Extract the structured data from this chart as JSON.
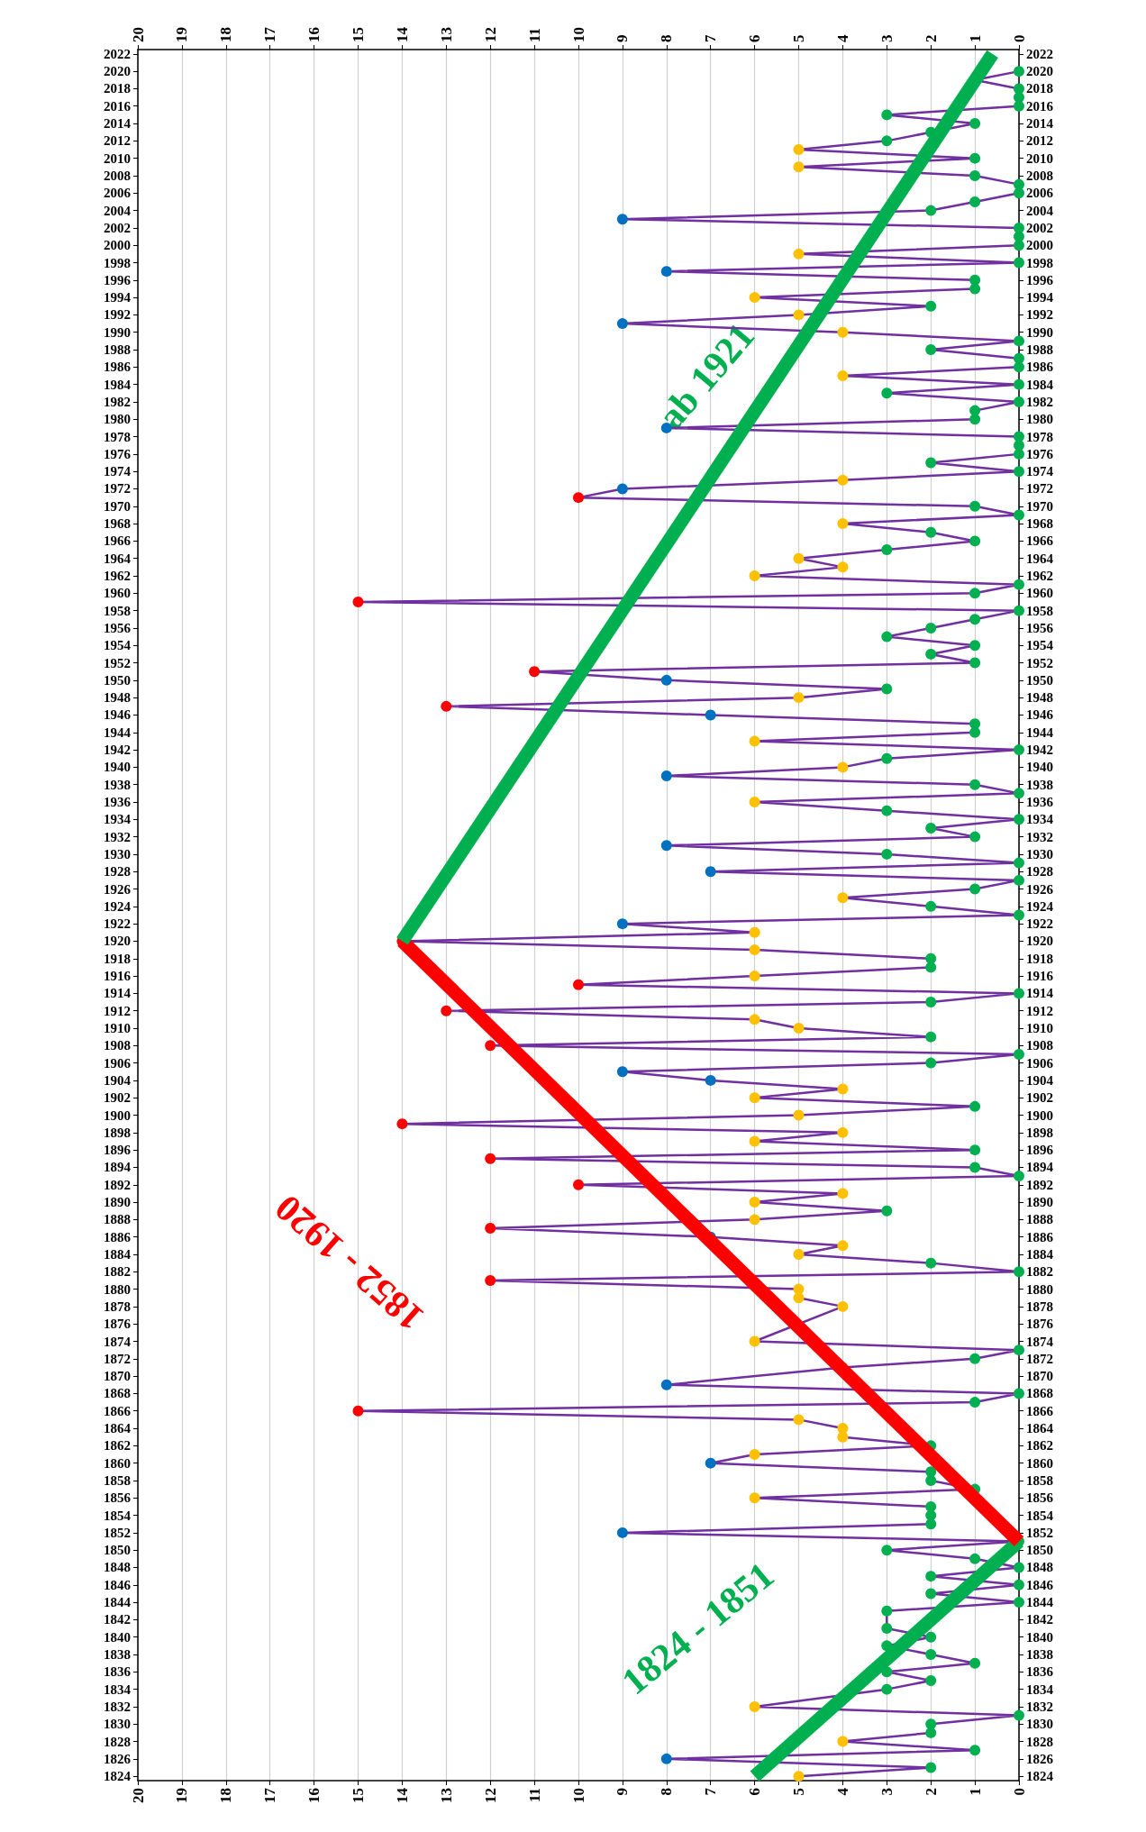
{
  "chart_data": {
    "type": "line",
    "orientation": "horizontal",
    "ylim": [
      1823.5,
      2022.5
    ],
    "yticks": [
      1824,
      1826,
      1828,
      1830,
      1832,
      1834,
      1836,
      1838,
      1840,
      1842,
      1844,
      1846,
      1848,
      1850,
      1852,
      1854,
      1856,
      1858,
      1860,
      1862,
      1864,
      1866,
      1868,
      1870,
      1872,
      1874,
      1876,
      1878,
      1880,
      1882,
      1884,
      1886,
      1888,
      1890,
      1892,
      1894,
      1896,
      1898,
      1900,
      1902,
      1904,
      1906,
      1908,
      1910,
      1912,
      1914,
      1916,
      1918,
      1920,
      1922,
      1924,
      1926,
      1928,
      1930,
      1932,
      1934,
      1936,
      1938,
      1940,
      1942,
      1944,
      1946,
      1948,
      1950,
      1952,
      1954,
      1956,
      1958,
      1960,
      1962,
      1964,
      1966,
      1968,
      1970,
      1972,
      1974,
      1976,
      1978,
      1980,
      1982,
      1984,
      1986,
      1988,
      1990,
      1992,
      1994,
      1996,
      1998,
      2000,
      2002,
      2004,
      2006,
      2008,
      2010,
      2012,
      2014,
      2016,
      2018,
      2020,
      2022
    ],
    "y2lim": [
      1823.5,
      2022.5
    ],
    "y2ticks": [
      1824,
      1826,
      1828,
      1830,
      1832,
      1834,
      1836,
      1838,
      1840,
      1842,
      1844,
      1846,
      1848,
      1850,
      1852,
      1854,
      1856,
      1858,
      1860,
      1862,
      1864,
      1866,
      1868,
      1870,
      1872,
      1874,
      1876,
      1878,
      1880,
      1882,
      1884,
      1886,
      1888,
      1890,
      1892,
      1894,
      1896,
      1898,
      1900,
      1902,
      1904,
      1906,
      1908,
      1910,
      1912,
      1914,
      1916,
      1918,
      1920,
      1922,
      1924,
      1926,
      1928,
      1930,
      1932,
      1934,
      1936,
      1938,
      1940,
      1942,
      1944,
      1946,
      1948,
      1950,
      1952,
      1954,
      1956,
      1958,
      1960,
      1962,
      1964,
      1966,
      1968,
      1970,
      1972,
      1974,
      1976,
      1978,
      1980,
      1982,
      1984,
      1986,
      1988,
      1990,
      1992,
      1994,
      1996,
      1998,
      2000,
      2002,
      2004,
      2006,
      2008,
      2010,
      2012,
      2014,
      2016,
      2018,
      2020,
      2022
    ],
    "xlim": [
      20,
      0
    ],
    "xticks": [
      0,
      1,
      2,
      3,
      4,
      5,
      6,
      7,
      8,
      9,
      10,
      11,
      12,
      13,
      14,
      15,
      16,
      17,
      18,
      19,
      20
    ],
    "x2lim": [
      20,
      0
    ],
    "x2ticks": [
      0,
      1,
      2,
      3,
      4,
      5,
      6,
      7,
      8,
      9,
      10,
      11,
      12,
      13,
      14,
      15,
      16,
      17,
      18,
      19,
      20
    ],
    "grid": "x",
    "marker": "circle",
    "series": [
      {
        "color": "#7030a0",
        "x": [
          1824,
          1825,
          1826,
          1827,
          1828,
          1829,
          1830,
          1831,
          1832,
          1833,
          1834,
          1835,
          1836,
          1837,
          1838,
          1839,
          1840,
          1841,
          1842,
          1843,
          1844,
          1845,
          1846,
          1847,
          1848,
          1849,
          1850,
          1851,
          1852,
          1853,
          1854,
          1855,
          1856,
          1857,
          1858,
          1859,
          1860,
          1861,
          1862,
          1863,
          1864,
          1865,
          1866,
          1867,
          1868,
          1869,
          1870,
          1871,
          1872,
          1873,
          1874,
          1875,
          1876,
          1877,
          1878,
          1879,
          1880,
          1881,
          1882,
          1883,
          1884,
          1885,
          1886,
          1887,
          1888,
          1889,
          1890,
          1891,
          1892,
          1893,
          1894,
          1895,
          1896,
          1897,
          1898,
          1899,
          1900,
          1901,
          1902,
          1903,
          1904,
          1905,
          1906,
          1907,
          1908,
          1909,
          1910,
          1911,
          1912,
          1913,
          1914,
          1915,
          1916,
          1917,
          1918,
          1919,
          1920,
          1921,
          1922,
          1923,
          1924,
          1925,
          1926,
          1927,
          1928,
          1929,
          1930,
          1931,
          1932,
          1933,
          1934,
          1935,
          1936,
          1937,
          1938,
          1939,
          1940,
          1941,
          1942,
          1943,
          1944,
          1945,
          1946,
          1947,
          1948,
          1949,
          1950,
          1951,
          1952,
          1953,
          1954,
          1955,
          1956,
          1957,
          1958,
          1959,
          1960,
          1961,
          1962,
          1963,
          1964,
          1965,
          1966,
          1967,
          1968,
          1969,
          1970,
          1971,
          1972,
          1973,
          1974,
          1975,
          1976,
          1977,
          1978,
          1979,
          1980,
          1981,
          1982,
          1983,
          1984,
          1985,
          1986,
          1987,
          1988,
          1989,
          1990,
          1991,
          1992,
          1993,
          1994,
          1995,
          1996,
          1997,
          1998,
          1999,
          2000,
          2001,
          2002,
          2003,
          2004,
          2005,
          2006,
          2007,
          2008,
          2009,
          2010,
          2011,
          2012,
          2013,
          2014,
          2015,
          2016,
          2017,
          2018,
          2019,
          2020
        ],
        "values": [
          5,
          2,
          8,
          1,
          4,
          2,
          2,
          0,
          6,
          null,
          3,
          2,
          3,
          1,
          2,
          3,
          2,
          3,
          null,
          3,
          0,
          2,
          0,
          2,
          0,
          1,
          3,
          0,
          9,
          2,
          2,
          2,
          6,
          1,
          2,
          2,
          7,
          6,
          2,
          4,
          4,
          5,
          15,
          1,
          0,
          8,
          null,
          4,
          1,
          0,
          6,
          null,
          null,
          null,
          4,
          5,
          5,
          12,
          0,
          2,
          5,
          4,
          7,
          12,
          6,
          3,
          6,
          4,
          10,
          0,
          1,
          12,
          1,
          6,
          4,
          14,
          5,
          1,
          6,
          4,
          7,
          9,
          2,
          0,
          12,
          2,
          5,
          6,
          13,
          2,
          0,
          10,
          6,
          2,
          2,
          6,
          14,
          6,
          9,
          0,
          2,
          4,
          1,
          0,
          7,
          0,
          3,
          8,
          1,
          2,
          0,
          3,
          6,
          0,
          1,
          8,
          4,
          3,
          0,
          6,
          1,
          1,
          7,
          13,
          5,
          3,
          8,
          11,
          1,
          2,
          1,
          3,
          2,
          1,
          0,
          15,
          1,
          0,
          6,
          4,
          5,
          3,
          1,
          2,
          4,
          0,
          1,
          10,
          9,
          4,
          0,
          2,
          0,
          0,
          0,
          8,
          1,
          1,
          0,
          3,
          0,
          4,
          0,
          0,
          2,
          0,
          4,
          9,
          5,
          2,
          6,
          1,
          1,
          8,
          0,
          5,
          0,
          0,
          0,
          9,
          2,
          1,
          0,
          0,
          1,
          5,
          1,
          5,
          3,
          2,
          1,
          3,
          0,
          0,
          0,
          1,
          0
        ],
        "colors": [
          "#ffc000",
          "#00b050",
          "#0070c0",
          "#00b050",
          "#ffc000",
          "#00b050",
          "#00b050",
          "#00b050",
          "#ffc000",
          null,
          "#00b050",
          "#00b050",
          "#00b050",
          "#00b050",
          "#00b050",
          "#00b050",
          "#00b050",
          "#00b050",
          null,
          "#00b050",
          "#00b050",
          "#00b050",
          "#00b050",
          "#00b050",
          "#00b050",
          "#00b050",
          "#00b050",
          "#00b050",
          "#0070c0",
          "#00b050",
          "#00b050",
          "#00b050",
          "#ffc000",
          "#00b050",
          "#00b050",
          "#00b050",
          "#0070c0",
          "#ffc000",
          "#00b050",
          "#ffc000",
          "#ffc000",
          "#ffc000",
          "#ff0000",
          "#00b050",
          "#00b050",
          "#0070c0",
          null,
          "#ffc000",
          "#00b050",
          "#00b050",
          "#ffc000",
          null,
          null,
          null,
          "#ffc000",
          "#ffc000",
          "#ffc000",
          "#ff0000",
          "#00b050",
          "#00b050",
          "#ffc000",
          "#ffc000",
          "#0070c0",
          "#ff0000",
          "#ffc000",
          "#00b050",
          "#ffc000",
          "#ffc000",
          "#ff0000",
          "#00b050",
          "#00b050",
          "#ff0000",
          "#00b050",
          "#ffc000",
          "#ffc000",
          "#ff0000",
          "#ffc000",
          "#00b050",
          "#ffc000",
          "#ffc000",
          "#0070c0",
          "#0070c0",
          "#00b050",
          "#00b050",
          "#ff0000",
          "#00b050",
          "#ffc000",
          "#ffc000",
          "#ff0000",
          "#00b050",
          "#00b050",
          "#ff0000",
          "#ffc000",
          "#00b050",
          "#00b050",
          "#ffc000",
          "#ff0000",
          "#ffc000",
          "#0070c0",
          "#00b050",
          "#00b050",
          "#ffc000",
          "#00b050",
          "#00b050",
          "#0070c0",
          "#00b050",
          "#00b050",
          "#0070c0",
          "#00b050",
          "#00b050",
          "#00b050",
          "#00b050",
          "#ffc000",
          "#00b050",
          "#00b050",
          "#0070c0",
          "#ffc000",
          "#00b050",
          "#00b050",
          "#ffc000",
          "#00b050",
          "#00b050",
          "#0070c0",
          "#ff0000",
          "#ffc000",
          "#00b050",
          "#0070c0",
          "#ff0000",
          "#00b050",
          "#00b050",
          "#00b050",
          "#00b050",
          "#00b050",
          "#00b050",
          "#00b050",
          "#ff0000",
          "#00b050",
          "#00b050",
          "#ffc000",
          "#ffc000",
          "#ffc000",
          "#00b050",
          "#00b050",
          "#00b050",
          "#ffc000",
          "#00b050",
          "#00b050",
          "#ff0000",
          "#0070c0",
          "#ffc000",
          "#00b050",
          "#00b050",
          "#00b050",
          "#00b050",
          "#00b050",
          "#0070c0",
          "#00b050",
          "#00b050",
          "#00b050",
          "#00b050",
          "#00b050",
          "#ffc000",
          "#00b050",
          "#00b050",
          "#00b050",
          "#00b050",
          "#ffc000",
          "#0070c0",
          "#ffc000",
          "#00b050",
          "#ffc000",
          "#00b050",
          "#00b050",
          "#0070c0",
          "#00b050",
          "#ffc000",
          "#00b050",
          "#00b050",
          "#00b050",
          "#0070c0",
          "#00b050",
          "#00b050",
          "#00b050",
          "#00b050",
          "#00b050",
          "#ffc000",
          "#00b050",
          "#ffc000",
          "#00b050",
          "#00b050",
          "#00b050",
          "#00b050",
          "#00b050",
          "#00b050",
          "#00b050",
          "#00b050",
          "#00b050"
        ]
      },
      {
        "name": "1824 - 1851",
        "color": "#00b050",
        "marker": "none",
        "x": [
          1824,
          1851
        ],
        "values": [
          6,
          0
        ]
      },
      {
        "name": "1852 - 1920",
        "color": "#ff0000",
        "marker": "none",
        "x": [
          1851,
          1920
        ],
        "values": [
          0,
          14
        ]
      },
      {
        "name": "ab 1921",
        "color": "#00b050",
        "marker": "none",
        "x": [
          1920,
          2022
        ],
        "values": [
          14,
          0.6
        ]
      }
    ]
  }
}
